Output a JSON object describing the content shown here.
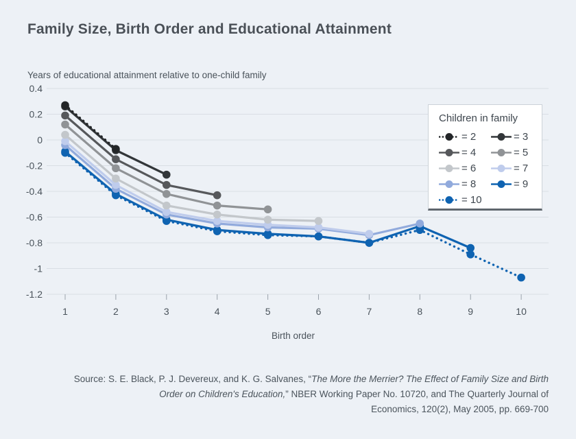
{
  "page": {
    "background": "#edf1f6",
    "accent_blue": "#0f63b1"
  },
  "chart_data": {
    "type": "line",
    "title": "Family Size, Birth Order and Educational Attainment",
    "subtitle": "Years of educational attainment relative to one-child family",
    "xlabel": "Birth order",
    "ylabel": "",
    "x": [
      1,
      2,
      3,
      4,
      5,
      6,
      7,
      8,
      9,
      10
    ],
    "y_ticks": [
      0.4,
      0.2,
      0,
      -0.2,
      -0.4,
      -0.6,
      -0.8,
      -1,
      -1.2
    ],
    "ylim": [
      -1.2,
      0.4
    ],
    "grid": "horizontal",
    "legend_title": "Children in family",
    "legend_position": "top-right",
    "series": [
      {
        "name": "= 2",
        "family_size": 2,
        "line_style": "dotted",
        "color": "#232628",
        "values": [
          0.27,
          -0.07
        ]
      },
      {
        "name": "= 3",
        "family_size": 3,
        "line_style": "solid",
        "color": "#323639",
        "values": [
          0.26,
          -0.08,
          -0.27
        ]
      },
      {
        "name": "= 4",
        "family_size": 4,
        "line_style": "solid",
        "color": "#56585b",
        "values": [
          0.19,
          -0.15,
          -0.35,
          -0.43
        ]
      },
      {
        "name": "= 5",
        "family_size": 5,
        "line_style": "solid",
        "color": "#909396",
        "values": [
          0.12,
          -0.22,
          -0.42,
          -0.51,
          -0.54
        ]
      },
      {
        "name": "= 6",
        "family_size": 6,
        "line_style": "solid",
        "color": "#c3c7cb",
        "values": [
          0.04,
          -0.3,
          -0.51,
          -0.58,
          -0.62,
          -0.63
        ]
      },
      {
        "name": "= 7",
        "family_size": 7,
        "line_style": "solid",
        "color": "#bfccec",
        "values": [
          -0.01,
          -0.35,
          -0.56,
          -0.63,
          -0.66,
          -0.68,
          -0.73
        ]
      },
      {
        "name": "= 8",
        "family_size": 8,
        "line_style": "solid",
        "color": "#91aadc",
        "values": [
          -0.04,
          -0.38,
          -0.58,
          -0.65,
          -0.68,
          -0.69,
          -0.74,
          -0.65
        ]
      },
      {
        "name": "= 9",
        "family_size": 9,
        "line_style": "solid",
        "color": "#0f63b1",
        "values": [
          -0.09,
          -0.42,
          -0.62,
          -0.7,
          -0.73,
          -0.75,
          -0.8,
          -0.67,
          -0.84
        ]
      },
      {
        "name": "= 10",
        "family_size": 10,
        "line_style": "dotted",
        "color": "#0f63b1",
        "values": [
          -0.1,
          -0.43,
          -0.63,
          -0.71,
          -0.74,
          -0.75,
          -0.8,
          -0.7,
          -0.89,
          -1.07
        ]
      }
    ]
  },
  "source": {
    "lines": [
      [
        {
          "text": "Source: S. E. Black, P. J. Devereux, and K. G. Salvanes, “",
          "italic": false
        },
        {
          "text": "The More the Merrier? The Effect of Family Size and Birth",
          "italic": true
        }
      ],
      [
        {
          "text": "Order on Children's Education,",
          "italic": true
        },
        {
          "text": "” NBER Working Paper No. 10720, and The Quarterly Journal of",
          "italic": false
        }
      ],
      [
        {
          "text": "Economics, 120(2), May 2005, pp. 669-700",
          "italic": false
        }
      ]
    ]
  },
  "colors": {
    "background": "#edf1f6",
    "gridline": "#d9dee4",
    "axis_tick": "#9aa2ab",
    "tick_text": "#49525a",
    "title_text": "#4a5057",
    "legend_border": "#ccd2d8",
    "legend_bottom_border": "#5f666d"
  }
}
